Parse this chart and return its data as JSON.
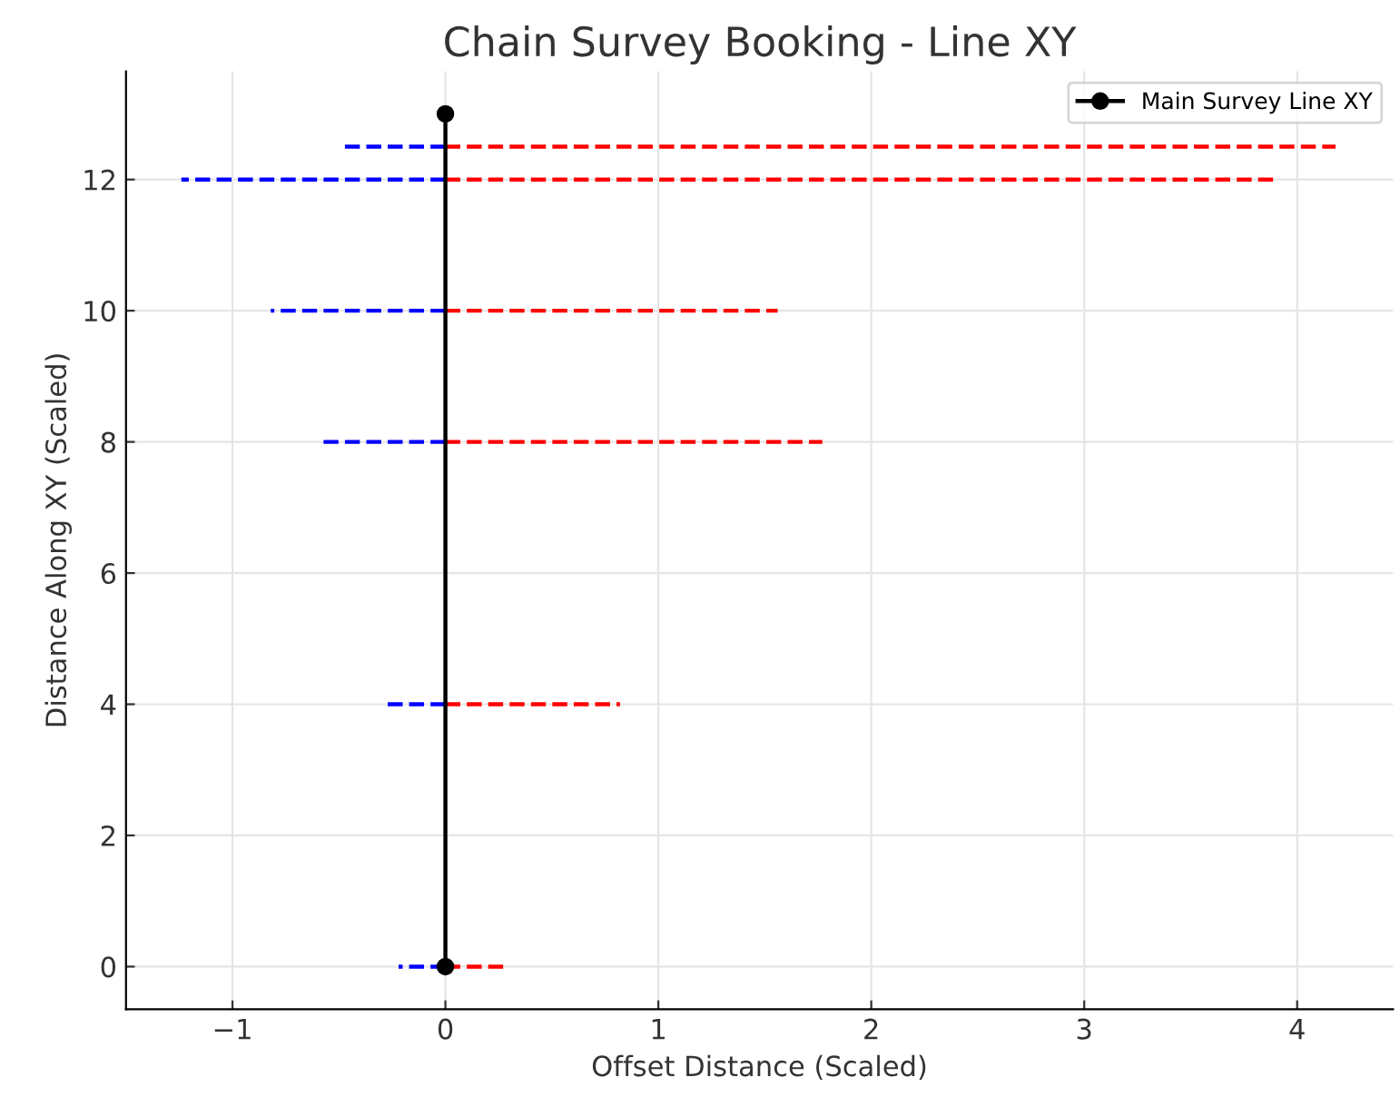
{
  "chart_data": {
    "type": "line",
    "title": "Chain Survey Booking - Line XY",
    "xlabel": "Offset Distance (Scaled)",
    "ylabel": "Distance Along XY (Scaled)",
    "xlim": [
      -1.5,
      4.45
    ],
    "ylim": [
      -0.65,
      13.65
    ],
    "xticks": [
      {
        "value": -1,
        "label": "−1"
      },
      0,
      1,
      2,
      3,
      4
    ],
    "yticks": [
      0,
      2,
      4,
      6,
      8,
      10,
      12
    ],
    "grid": true,
    "legend": "top right",
    "series": [
      {
        "name": "Main Survey Line XY",
        "color": "#000000",
        "x": [
          0,
          0
        ],
        "values": [
          0,
          13
        ],
        "marker": "circle",
        "line_style": "solid"
      },
      {
        "color": "#0000ff",
        "x": [
          0,
          -0.22
        ],
        "values": [
          0,
          0
        ],
        "line_style": "dashed"
      },
      {
        "color": "#ff0000",
        "x": [
          0,
          0.29
        ],
        "values": [
          0,
          0
        ],
        "line_style": "dashed"
      },
      {
        "color": "#0000ff",
        "x": [
          0,
          -0.29
        ],
        "values": [
          4,
          4
        ],
        "line_style": "dashed"
      },
      {
        "color": "#ff0000",
        "x": [
          0,
          0.82
        ],
        "values": [
          4,
          4
        ],
        "line_style": "dashed"
      },
      {
        "color": "#0000ff",
        "x": [
          0,
          -0.58
        ],
        "values": [
          8,
          8
        ],
        "line_style": "dashed"
      },
      {
        "color": "#ff0000",
        "x": [
          0,
          1.77
        ],
        "values": [
          8,
          8
        ],
        "line_style": "dashed"
      },
      {
        "color": "#0000ff",
        "x": [
          0,
          -0.82
        ],
        "values": [
          10,
          10
        ],
        "line_style": "dashed"
      },
      {
        "color": "#ff0000",
        "x": [
          0,
          1.56
        ],
        "values": [
          10,
          10
        ],
        "line_style": "dashed"
      },
      {
        "color": "#0000ff",
        "x": [
          0,
          -1.24
        ],
        "values": [
          12,
          12
        ],
        "line_style": "dashed"
      },
      {
        "color": "#ff0000",
        "x": [
          0,
          3.9
        ],
        "values": [
          12,
          12
        ],
        "line_style": "dashed"
      },
      {
        "color": "#0000ff",
        "x": [
          0,
          -0.5
        ],
        "values": [
          12.5,
          12.5
        ],
        "line_style": "dashed"
      },
      {
        "color": "#ff0000",
        "x": [
          0,
          4.18
        ],
        "values": [
          12.5,
          12.5
        ],
        "line_style": "dashed"
      }
    ]
  }
}
